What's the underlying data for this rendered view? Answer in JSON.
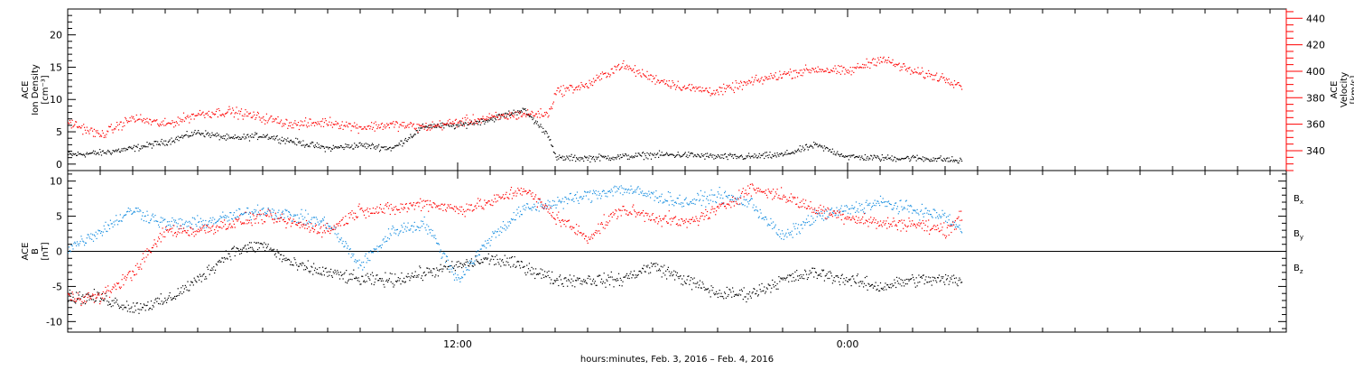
{
  "x_axis": {
    "caption": "hours:minutes, Feb.  3, 2016 – Feb.  4, 2016",
    "ticks": [
      {
        "hours": 12,
        "label": "12:00"
      },
      {
        "hours": 24,
        "label": "0:00"
      }
    ],
    "range_hours": [
      0,
      37.5
    ],
    "data_end_hours": 27.5
  },
  "panels": [
    {
      "id": "density-velocity",
      "left_label": [
        "ACE",
        "Ion Density",
        "[cm⁻³]"
      ],
      "right_label": [
        "ACE",
        "Velocity",
        "[km/s]"
      ],
      "left_axis": {
        "ylim": [
          -1,
          24
        ],
        "ticks": [
          0,
          5,
          10,
          15,
          20
        ]
      },
      "right_axis": {
        "ylim": [
          325,
          447
        ],
        "ticks": [
          340,
          360,
          380,
          400,
          420,
          440
        ],
        "color": "#ff0000"
      }
    },
    {
      "id": "magnetic-field",
      "left_label": [
        "ACE",
        "B",
        "[nT]"
      ],
      "left_axis": {
        "ylim": [
          -11.5,
          11.5
        ],
        "ticks": [
          -10,
          -5,
          0,
          5,
          10
        ]
      },
      "zero_line": true,
      "legend": [
        {
          "name": "Bx",
          "base": "B",
          "sub": "x",
          "color": "#000000"
        },
        {
          "name": "By",
          "base": "B",
          "sub": "y",
          "color": "#1a8fe0"
        },
        {
          "name": "Bz",
          "base": "B",
          "sub": "z",
          "color": "#ff0000"
        }
      ]
    }
  ],
  "chart_data": [
    {
      "type": "scatter",
      "panel": "density-velocity",
      "xlabel": "hours:minutes, Feb.  3, 2016 – Feb.  4, 2016",
      "series": [
        {
          "name": "Ion Density",
          "axis": "left",
          "color": "#000000",
          "unit": "cm^-3",
          "x_hours": [
            0,
            1,
            2,
            3,
            4,
            5,
            6,
            7,
            8,
            9,
            10,
            11,
            12,
            13,
            14,
            14.8,
            15,
            16,
            17,
            18,
            19,
            20,
            21,
            22,
            23,
            24,
            25,
            26,
            27,
            27.5
          ],
          "values": [
            1.5,
            1.8,
            2.5,
            3.5,
            5,
            4,
            4.5,
            3.5,
            2.5,
            3,
            2.5,
            6,
            6,
            7,
            8.5,
            4.5,
            1,
            1,
            1.2,
            1.5,
            1.5,
            1.2,
            1.2,
            1.5,
            3,
            1.2,
            1,
            1,
            0.8,
            0.5
          ]
        },
        {
          "name": "Velocity",
          "axis": "right",
          "color": "#ff0000",
          "unit": "km/s",
          "x_hours": [
            0,
            1,
            2,
            3,
            4,
            5,
            6,
            7,
            8,
            9,
            10,
            11,
            12,
            13,
            14,
            14.8,
            15,
            16,
            17,
            18,
            19,
            20,
            21,
            22,
            23,
            24,
            25,
            26,
            27,
            27.5
          ],
          "values": [
            362,
            352,
            365,
            360,
            368,
            370,
            365,
            360,
            362,
            358,
            360,
            358,
            362,
            365,
            368,
            368,
            385,
            390,
            405,
            395,
            388,
            385,
            392,
            398,
            402,
            400,
            410,
            400,
            395,
            390
          ]
        }
      ]
    },
    {
      "type": "scatter",
      "panel": "magnetic-field",
      "ylabel": "B [nT]",
      "series": [
        {
          "name": "Bx",
          "color": "#000000",
          "x_hours": [
            0,
            1,
            2,
            3,
            4,
            5,
            6,
            7,
            8,
            9,
            10,
            11,
            12,
            13,
            14,
            15,
            16,
            17,
            18,
            19,
            20,
            21,
            22,
            23,
            24,
            25,
            26,
            27,
            27.5
          ],
          "values": [
            -6.5,
            -6.5,
            -8,
            -7,
            -4,
            0,
            1,
            -2,
            -3,
            -4,
            -4,
            -3,
            -2,
            -1,
            -2,
            -4,
            -4,
            -4,
            -2,
            -4,
            -6,
            -6,
            -4,
            -3,
            -4,
            -5,
            -4,
            -4,
            -4
          ]
        },
        {
          "name": "By",
          "color": "#1a8fe0",
          "x_hours": [
            0,
            1,
            2,
            3,
            4,
            5,
            6,
            7,
            8,
            9,
            10,
            11,
            12,
            13,
            14,
            15,
            16,
            17,
            18,
            19,
            20,
            21,
            22,
            23,
            24,
            25,
            26,
            27,
            27.5
          ],
          "values": [
            0.5,
            3,
            6,
            4,
            4,
            5,
            6,
            5,
            4,
            -2,
            3,
            4,
            -4,
            2,
            6,
            7,
            8,
            9,
            8,
            7,
            8,
            7,
            2,
            5,
            6,
            7,
            6,
            5,
            3
          ]
        },
        {
          "name": "Bz",
          "color": "#ff0000",
          "x_hours": [
            0,
            1,
            2,
            3,
            4,
            5,
            6,
            7,
            8,
            9,
            10,
            11,
            12,
            13,
            14,
            15,
            16,
            17,
            18,
            19,
            20,
            21,
            22,
            23,
            24,
            25,
            26,
            27,
            27.5
          ],
          "values": [
            -6.5,
            -6.5,
            -3,
            3,
            3,
            4,
            5,
            4,
            3,
            6,
            6,
            7,
            6,
            7,
            9,
            5,
            2,
            6,
            5,
            4,
            6,
            9,
            8,
            6,
            5,
            4,
            4,
            3,
            5
          ]
        }
      ]
    }
  ]
}
